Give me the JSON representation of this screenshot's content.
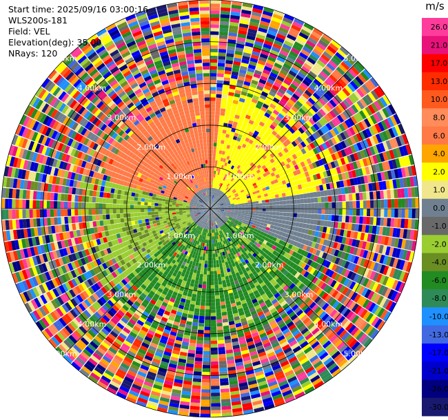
{
  "info": {
    "start_time": "Start time: 2025/09/16 03:00:16",
    "instrument": "WLS200s-181",
    "field": "Field: VEL",
    "elevation": "Elevation(deg): 35.00",
    "nrays": "NRays: 120"
  },
  "colorbar": {
    "title": "m/s",
    "labels": [
      "26.0",
      "21.0",
      "17.0",
      "13.0",
      "10.0",
      "8.0",
      "6.0",
      "4.0",
      "2.0",
      "1.0",
      "0.0",
      "-1.0",
      "-2.0",
      "-4.0",
      "-6.0",
      "-8.0",
      "-10.0",
      "-13.0",
      "-17.0",
      "-21.0",
      "-26.0",
      "-30.0"
    ],
    "colors": [
      "#ff3c9b",
      "#e8127a",
      "#ff0000",
      "#ff2c00",
      "#ff5a1e",
      "#ff8c5a",
      "#ff7a46",
      "#ffa500",
      "#ffff00",
      "#f0e68c",
      "#708090",
      "#696969",
      "#9acd32",
      "#6b8e23",
      "#228b22",
      "#2e8b57",
      "#1e90ff",
      "#4169e1",
      "#0000ff",
      "#0000cd",
      "#000080",
      "#191970"
    ]
  },
  "chart_data": {
    "type": "heatmap",
    "title": "",
    "field": "VEL",
    "units": "m/s",
    "projection": "polar PPI",
    "nrays": 120,
    "elevation_deg": 35.0,
    "range_ring_labels": [
      "1.00km",
      "2.00km",
      "3.00km",
      "4.00km",
      "5.00km"
    ],
    "range_rings_km": [
      1,
      2,
      3,
      4,
      5
    ],
    "max_range_km": 5.0,
    "description_regions": [
      {
        "sector": "north-west",
        "range_km": [
          0,
          3
        ],
        "dominant_value": 6.0
      },
      {
        "sector": "north-east",
        "range_km": [
          0,
          3
        ],
        "dominant_value": 2.0
      },
      {
        "sector": "east",
        "range_km": [
          0,
          2
        ],
        "dominant_value": -1.0
      },
      {
        "sector": "south",
        "range_km": [
          0,
          3
        ],
        "dominant_value": -6.0
      },
      {
        "sector": "south-west",
        "range_km": [
          0,
          3
        ],
        "dominant_value": -2.0
      },
      {
        "sector": "all",
        "range_km": [
          3,
          5
        ],
        "dominant_value": "noise"
      }
    ]
  }
}
